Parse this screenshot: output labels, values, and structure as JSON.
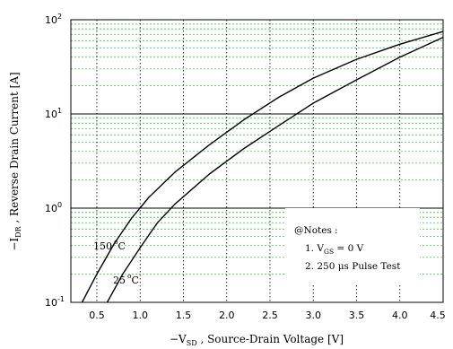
{
  "chart_data": {
    "type": "line",
    "title": "",
    "xlabel": "-VₛD , Source-Drain Voltage [V]",
    "xlabel_main": "−V",
    "xlabel_sub": "SD",
    "xlabel_rest": " ,  Source-Drain Voltage   [V]",
    "ylabel_main": "−I",
    "ylabel_sub": "DR",
    "ylabel_rest": "  ,  Reverse Drain Current   [A]",
    "xlim": [
      0.2,
      4.5
    ],
    "ylim": [
      0.1,
      100
    ],
    "yscale": "log",
    "grid": true,
    "x_ticks": [
      "0.5",
      "1.0",
      "1.5",
      "2.0",
      "2.5",
      "3.0",
      "3.5",
      "4.0",
      "4.5"
    ],
    "y_ticks": [
      {
        "base": "10",
        "exp": "-1"
      },
      {
        "base": "10",
        "exp": "0"
      },
      {
        "base": "10",
        "exp": "1"
      },
      {
        "base": "10",
        "exp": "2"
      }
    ],
    "series": [
      {
        "name": "150 °C",
        "label_main": "150",
        "label_unit": "C",
        "x": [
          0.33,
          0.5,
          0.7,
          0.9,
          1.1,
          1.4,
          1.8,
          2.2,
          2.6,
          3.0,
          3.5,
          4.0,
          4.5
        ],
        "y": [
          0.1,
          0.2,
          0.42,
          0.78,
          1.3,
          2.4,
          4.7,
          8.7,
          15,
          24,
          38,
          55,
          75
        ]
      },
      {
        "name": "25 °C",
        "label_main": "25",
        "label_unit": "C",
        "x": [
          0.62,
          0.8,
          1.0,
          1.2,
          1.4,
          1.8,
          2.2,
          2.6,
          3.0,
          3.5,
          4.0,
          4.5
        ],
        "y": [
          0.1,
          0.2,
          0.38,
          0.7,
          1.1,
          2.3,
          4.3,
          7.5,
          13,
          23,
          40,
          65
        ]
      }
    ],
    "notes": {
      "title": "@Notes :",
      "line1_prefix": "1. V",
      "line1_sub": "GS",
      "line1_suffix": " = 0 V",
      "line2": "2. 250 μs Pulse Test"
    }
  }
}
